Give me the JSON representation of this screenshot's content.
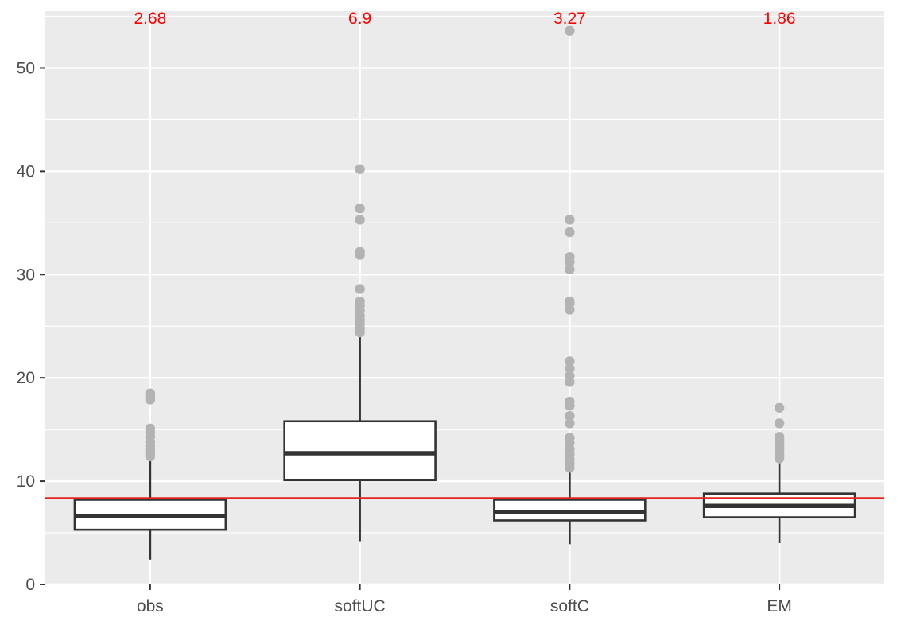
{
  "chart_data": {
    "type": "boxplot",
    "title": "",
    "xlabel": "",
    "ylabel": "",
    "ylim": [
      0,
      55.5
    ],
    "y_ticks": [
      0,
      10,
      20,
      30,
      40,
      50
    ],
    "grid": true,
    "background": "#ebebeb",
    "categories": [
      "obs",
      "softUC",
      "softC",
      "EM"
    ],
    "boxes": [
      {
        "category": "obs",
        "whisker_low": 2.4,
        "q1": 5.3,
        "median": 6.6,
        "q3": 8.2,
        "whisker_high": 12.2,
        "outliers": [
          12.4,
          12.7,
          13.0,
          13.4,
          13.8,
          14.3,
          14.7,
          15.1,
          17.9,
          18.2,
          18.5
        ]
      },
      {
        "category": "softUC",
        "whisker_low": 4.2,
        "q1": 10.1,
        "median": 12.7,
        "q3": 15.8,
        "whisker_high": 24.0,
        "outliers": [
          24.4,
          24.8,
          25.2,
          25.6,
          26.0,
          26.5,
          27.0,
          27.4,
          28.6,
          31.9,
          32.2,
          35.3,
          36.4,
          40.2
        ]
      },
      {
        "category": "softC",
        "whisker_low": 3.9,
        "q1": 6.2,
        "median": 7.0,
        "q3": 8.2,
        "whisker_high": 11.0,
        "outliers": [
          11.3,
          11.7,
          12.1,
          12.6,
          13.1,
          13.7,
          14.2,
          15.6,
          16.3,
          17.3,
          17.7,
          19.6,
          20.2,
          20.9,
          21.6,
          26.6,
          27.2,
          27.4,
          30.5,
          31.2,
          31.7,
          34.1,
          35.3,
          53.6
        ]
      },
      {
        "category": "EM",
        "whisker_low": 4.0,
        "q1": 6.5,
        "median": 7.6,
        "q3": 8.8,
        "whisker_high": 12.0,
        "outliers": [
          12.2,
          12.5,
          12.8,
          13.1,
          13.4,
          13.7,
          14.0,
          14.3,
          15.6,
          17.1
        ]
      }
    ],
    "annotations": [
      {
        "category": "obs",
        "text": "2.68",
        "y": 54.9
      },
      {
        "category": "softUC",
        "text": "6.9",
        "y": 54.9
      },
      {
        "category": "softC",
        "text": "3.27",
        "y": 54.9
      },
      {
        "category": "EM",
        "text": "1.86",
        "y": 54.9
      }
    ],
    "hline": {
      "y": 8.35,
      "color": "#e8231f"
    },
    "colors": {
      "panel": "#ebebeb",
      "grid": "#ffffff",
      "box_fill": "#ffffff",
      "box_line": "#333333",
      "outlier": "#b3b3b3",
      "annotation": "#ff0000",
      "tick_text": "#4d4d4d",
      "tick_mark": "#333333"
    }
  }
}
